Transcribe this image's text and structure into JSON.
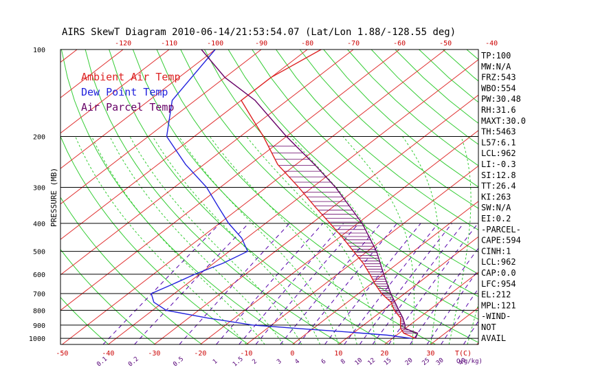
{
  "chart_data": {
    "type": "skewt",
    "title": "AIRS SkewT Diagram 2010-06-14/21:53:54.07 (Lat/Lon 1.88/-128.55 deg)",
    "ylabel": "PRESSURE (MB)",
    "xlabel": "T(C)",
    "mixing_ratio_unit": "Q(g/kg)",
    "pressure_ticks": [
      100,
      200,
      300,
      400,
      500,
      600,
      700,
      800,
      900,
      1000
    ],
    "temp_ticks_top": [
      -120,
      -110,
      -100,
      -90,
      -80,
      -70,
      -60,
      -50,
      -40
    ],
    "temp_ticks_bottom": [
      -50,
      -40,
      -30,
      -20,
      -10,
      0,
      10,
      20,
      30
    ],
    "mixing_ratio_labels": [
      "0.1",
      "0.2",
      "0.5",
      "1",
      "1.5",
      "2",
      "3",
      "4",
      "6",
      "8",
      "10",
      "12",
      "15",
      "20",
      "25",
      "30",
      "40"
    ],
    "legend": [
      {
        "name": "Ambient Air Temp",
        "color": "#dd2222"
      },
      {
        "name": "Dew Point Temp",
        "color": "#2222dd"
      },
      {
        "name": "Air Parcel Temp",
        "color": "#660066"
      }
    ],
    "series": [
      {
        "name": "Ambient Air Temp",
        "color": "#dd2222",
        "points": [
          [
            1000,
            25
          ],
          [
            980,
            23
          ],
          [
            960,
            21
          ],
          [
            925,
            19
          ],
          [
            900,
            18
          ],
          [
            850,
            16
          ],
          [
            800,
            12.5
          ],
          [
            750,
            9.5
          ],
          [
            700,
            5
          ],
          [
            650,
            1
          ],
          [
            600,
            -3
          ],
          [
            550,
            -7.5
          ],
          [
            500,
            -13
          ],
          [
            450,
            -19
          ],
          [
            400,
            -26
          ],
          [
            350,
            -34
          ],
          [
            300,
            -43
          ],
          [
            250,
            -54
          ],
          [
            200,
            -65
          ],
          [
            175,
            -72
          ],
          [
            150,
            -80
          ],
          [
            125,
            -80
          ],
          [
            100,
            -77
          ]
        ]
      },
      {
        "name": "Dew Point Temp",
        "color": "#2222dd",
        "points": [
          [
            1000,
            24
          ],
          [
            975,
            18
          ],
          [
            950,
            8
          ],
          [
            925,
            -3
          ],
          [
            900,
            -14
          ],
          [
            850,
            -26
          ],
          [
            800,
            -37
          ],
          [
            750,
            -42
          ],
          [
            700,
            -45
          ],
          [
            650,
            -43
          ],
          [
            600,
            -41
          ],
          [
            550,
            -38
          ],
          [
            500,
            -36
          ],
          [
            450,
            -41
          ],
          [
            400,
            -48
          ],
          [
            350,
            -55
          ],
          [
            300,
            -63
          ],
          [
            250,
            -74
          ],
          [
            200,
            -86
          ],
          [
            150,
            -95
          ],
          [
            100,
            -100
          ]
        ]
      },
      {
        "name": "Air Parcel Temp",
        "color": "#660066",
        "points": [
          [
            1000,
            25
          ],
          [
            960,
            24
          ],
          [
            925,
            20
          ],
          [
            900,
            19
          ],
          [
            850,
            16.5
          ],
          [
            800,
            13.5
          ],
          [
            700,
            7
          ],
          [
            600,
            0
          ],
          [
            500,
            -8
          ],
          [
            400,
            -19
          ],
          [
            300,
            -35
          ],
          [
            250,
            -46
          ],
          [
            200,
            -60
          ],
          [
            150,
            -77
          ],
          [
            125,
            -90
          ],
          [
            100,
            -103
          ]
        ]
      }
    ]
  },
  "indices": [
    "TP:100",
    "MW:N/A",
    "FRZ:543",
    "WBO:554",
    "PW:30.48",
    "RH:31.6",
    "MAXT:30.0",
    "TH:5463",
    "L57:6.1",
    "LCL:962",
    "LI:-0.3",
    "SI:12.8",
    "TT:26.4",
    "KI:263",
    "SW:N/A",
    "EI:0.2",
    "-PARCEL-",
    "CAPE:594",
    "CINH:1",
    "LCL:962",
    "CAP:0.0",
    "LFC:954",
    "EL:212",
    "MPL:121",
    "-WIND-",
    "NOT",
    "AVAIL"
  ]
}
